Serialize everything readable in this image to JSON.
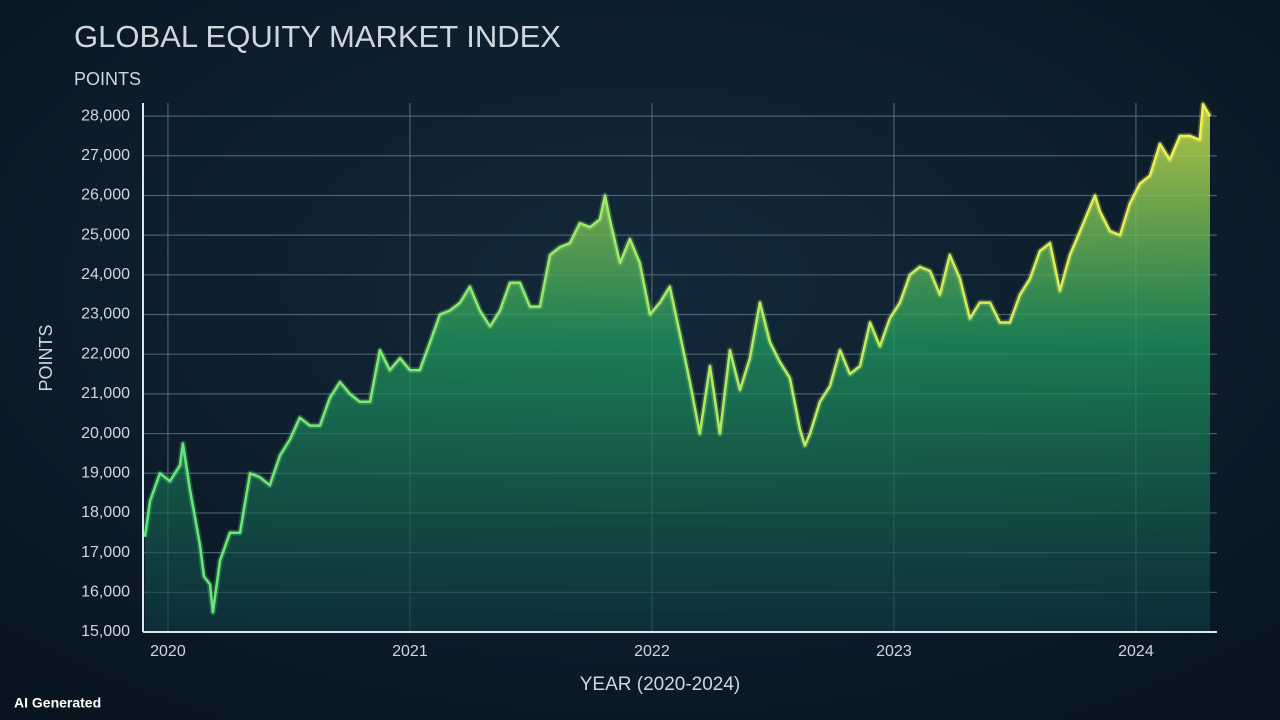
{
  "chart_data": {
    "type": "area",
    "title": "GLOBAL EQUITY MARKET INDEX",
    "subtitle": "POINTS",
    "ylabel": "POINTS",
    "xlabel": "YEAR (2020-2024)",
    "watermark": "AI Generated",
    "xlim": [
      2019.897,
      2024.335
    ],
    "xticks": [
      2020,
      2021,
      2022,
      2023,
      2024
    ],
    "ylim": [
      15000,
      28330
    ],
    "yticks": [
      {
        "value": 15000,
        "label": "15,000"
      },
      {
        "value": 16000,
        "label": "16,000"
      },
      {
        "value": 17000,
        "label": "17,000"
      },
      {
        "value": 18000,
        "label": "18,000"
      },
      {
        "value": 19000,
        "label": "19,000"
      },
      {
        "value": 20000,
        "label": "20,000"
      },
      {
        "value": 21000,
        "label": "21,000"
      },
      {
        "value": 22000,
        "label": "22,000"
      },
      {
        "value": 23000,
        "label": "23,000"
      },
      {
        "value": 24000,
        "label": "24,000"
      },
      {
        "value": 25000,
        "label": "25,000"
      },
      {
        "value": 26000,
        "label": "26,000"
      },
      {
        "value": 27000,
        "label": "27,000"
      },
      {
        "value": 28000,
        "label": "28,000"
      }
    ],
    "grid": true,
    "line_gradient": [
      "#5fe87a",
      "#f2ef52"
    ],
    "fill_gradient": [
      "#c9d84a",
      "#0f3b45"
    ],
    "x": [
      2019.905,
      2019.926,
      2019.967,
      2020.008,
      2020.05,
      2020.062,
      2020.091,
      2020.132,
      2020.149,
      2020.174,
      2020.186,
      2020.215,
      2020.256,
      2020.298,
      2020.339,
      2020.38,
      2020.421,
      2020.463,
      2020.504,
      2020.545,
      2020.587,
      2020.628,
      2020.669,
      2020.711,
      2020.752,
      2020.793,
      2020.835,
      2020.876,
      2020.917,
      2020.959,
      2021.0,
      2021.041,
      2021.083,
      2021.124,
      2021.165,
      2021.207,
      2021.248,
      2021.289,
      2021.331,
      2021.372,
      2021.413,
      2021.455,
      2021.496,
      2021.537,
      2021.579,
      2021.62,
      2021.661,
      2021.702,
      2021.744,
      2021.785,
      2021.806,
      2021.826,
      2021.868,
      2021.909,
      2021.95,
      2021.992,
      2022.033,
      2022.074,
      2022.116,
      2022.157,
      2022.198,
      2022.24,
      2022.281,
      2022.322,
      2022.364,
      2022.405,
      2022.446,
      2022.488,
      2022.529,
      2022.57,
      2022.612,
      2022.632,
      2022.653,
      2022.694,
      2022.736,
      2022.777,
      2022.818,
      2022.86,
      2022.901,
      2022.942,
      2022.983,
      2023.025,
      2023.066,
      2023.107,
      2023.149,
      2023.19,
      2023.231,
      2023.273,
      2023.314,
      2023.355,
      2023.397,
      2023.438,
      2023.479,
      2023.521,
      2023.562,
      2023.603,
      2023.645,
      2023.686,
      2023.727,
      2023.769,
      2023.81,
      2023.831,
      2023.851,
      2023.893,
      2023.934,
      2023.975,
      2024.017,
      2024.058,
      2024.099,
      2024.14,
      2024.182,
      2024.223,
      2024.264,
      2024.277,
      2024.306
    ],
    "values": [
      17400,
      18300,
      19000,
      18800,
      19200,
      19750,
      18600,
      17200,
      16400,
      16200,
      15500,
      16800,
      17500,
      17500,
      19000,
      18900,
      18700,
      19450,
      19850,
      20400,
      20200,
      20200,
      20900,
      21300,
      21000,
      20800,
      20800,
      22100,
      21600,
      21900,
      21600,
      21600,
      22300,
      23000,
      23100,
      23300,
      23700,
      23100,
      22700,
      23100,
      23800,
      23800,
      23200,
      23200,
      24500,
      24700,
      24800,
      25300,
      25200,
      25400,
      26000,
      25400,
      24300,
      24900,
      24300,
      23000,
      23300,
      23700,
      22500,
      21300,
      20000,
      21700,
      20000,
      22100,
      21100,
      21900,
      23300,
      22300,
      21800,
      21400,
      20100,
      19700,
      20000,
      20800,
      21200,
      22100,
      21500,
      21700,
      22800,
      22200,
      22900,
      23300,
      24000,
      24200,
      24100,
      23500,
      24500,
      23900,
      22900,
      23300,
      23300,
      22800,
      22800,
      23500,
      23900,
      24600,
      24800,
      23600,
      24500,
      25100,
      25700,
      26000,
      25600,
      25100,
      25000,
      25800,
      26300,
      26500,
      27300,
      26900,
      27500,
      27500,
      27400,
      28300,
      28000
    ]
  }
}
